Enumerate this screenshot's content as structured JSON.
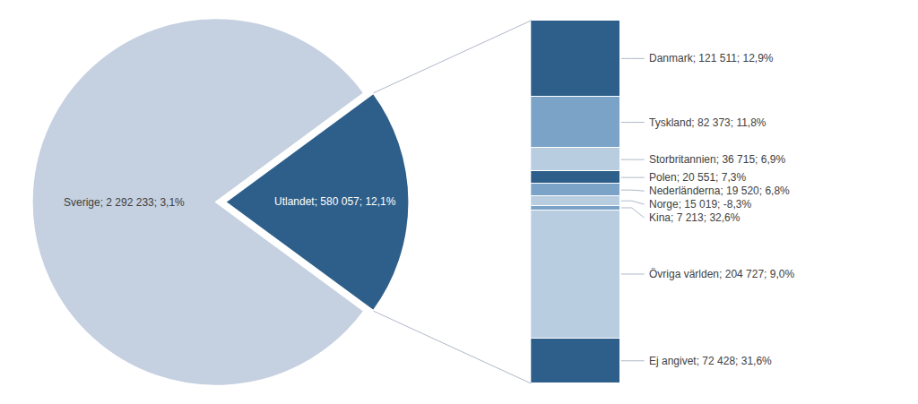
{
  "chart_data": [
    {
      "type": "pie",
      "categories": [
        "Sverige; 2 292 233; 3,1%",
        "Utlandet; 580 057; 12,1%"
      ],
      "values": [
        2292233,
        580057
      ],
      "colors": [
        "#c5d0e0",
        "#2e5f8a"
      ]
    },
    {
      "type": "bar",
      "stacked": true,
      "categories": [
        null
      ],
      "tick_labels": false,
      "ylim": [
        0,
        580057
      ],
      "series": [
        {
          "name": "Danmark; 121 511; 12,9%",
          "color": "#2e5f8a",
          "values": [
            121511
          ]
        },
        {
          "name": "Tyskland; 82 373; 11,8%",
          "color": "#7ba3c8",
          "values": [
            82373
          ]
        },
        {
          "name": "Storbritannien; 36 715; 6,9%",
          "color": "#b8cde0",
          "values": [
            36715
          ]
        },
        {
          "name": "Polen; 20 551; 7,3%",
          "color": "#2e5f8a",
          "values": [
            20551
          ]
        },
        {
          "name": "Nederländerna; 19 520; 6,8%",
          "color": "#7ba3c8",
          "values": [
            19520
          ]
        },
        {
          "name": "Norge; 15 019; -8,3%",
          "color": "#b8cde0",
          "values": [
            15019
          ]
        },
        {
          "name": "Kina; 7 213; 32,6%",
          "color": "#7ba3c8",
          "values": [
            7213
          ]
        },
        {
          "name": "Övriga världen; 204 727; 9,0%",
          "color": "#b8cde0",
          "values": [
            204727
          ]
        },
        {
          "name": "Ej angivet; 72 428; 31,6%",
          "color": "#2e5f8a",
          "values": [
            72428
          ]
        }
      ]
    }
  ]
}
